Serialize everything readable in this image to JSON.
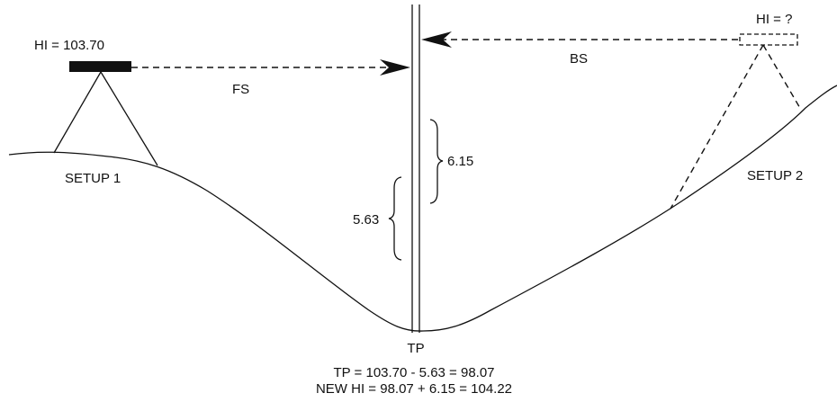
{
  "labels": {
    "setup1_hi": "HI = 103.70",
    "fs": "FS",
    "setup1": "SETUP 1",
    "rod_fs": "5.63",
    "rod_bs": "6.15",
    "tp": "TP",
    "bs": "BS",
    "setup2_hi": "HI = ?",
    "setup2": "SETUP 2"
  },
  "equations": [
    "TP = 103.70 - 5.63 = 98.07",
    "NEW HI = 98.07 + 6.15 = 104.22"
  ]
}
